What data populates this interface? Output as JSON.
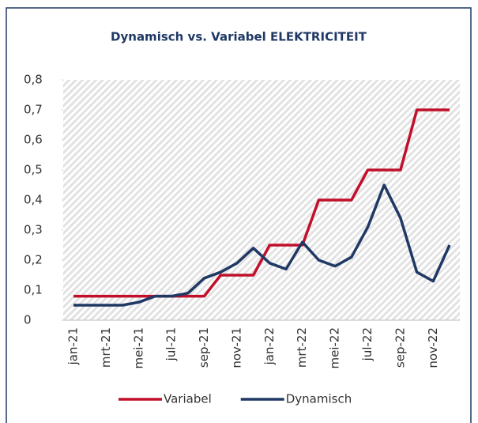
{
  "chart_data": {
    "type": "line",
    "title": "Dynamisch vs. Variabel ELEKTRICITEIT",
    "categories": [
      "jan-21",
      null,
      "mrt-21",
      null,
      "mei-21",
      null,
      "jul-21",
      null,
      "sep-21",
      null,
      "nov-21",
      null,
      "jan-22",
      null,
      "mrt-22",
      null,
      "mei-22",
      null,
      "jul-22",
      null,
      "sep-22",
      null,
      "nov-22",
      null
    ],
    "series": [
      {
        "name": "Variabel",
        "color": "#c0102a",
        "values": [
          0.08,
          0.08,
          0.08,
          0.08,
          0.08,
          0.08,
          0.08,
          0.08,
          0.08,
          0.15,
          0.15,
          0.15,
          0.25,
          0.25,
          0.25,
          0.4,
          0.4,
          0.4,
          0.5,
          0.5,
          0.5,
          0.7,
          0.7,
          0.7
        ]
      },
      {
        "name": "Dynamisch",
        "color": "#1f3864",
        "values": [
          0.05,
          0.05,
          0.05,
          0.05,
          0.06,
          0.08,
          0.08,
          0.09,
          0.14,
          0.16,
          0.19,
          0.24,
          0.19,
          0.17,
          0.26,
          0.2,
          0.18,
          0.21,
          0.31,
          0.45,
          0.34,
          0.16,
          0.13,
          0.25
        ]
      }
    ],
    "ylim": [
      0,
      0.8
    ],
    "yticks": [
      0,
      {
        "value": 0.1,
        "label": "0,1"
      },
      {
        "value": 0.2,
        "label": "0,2"
      },
      {
        "value": 0.3,
        "label": "0,3"
      },
      {
        "value": 0.4,
        "label": "0,4"
      },
      {
        "value": 0.5,
        "label": "0,5"
      },
      {
        "value": 0.6,
        "label": "0,6"
      },
      {
        "value": 0.7,
        "label": "0,7"
      },
      {
        "value": 0.8,
        "label": "0,8"
      }
    ],
    "legend": "bottom"
  }
}
